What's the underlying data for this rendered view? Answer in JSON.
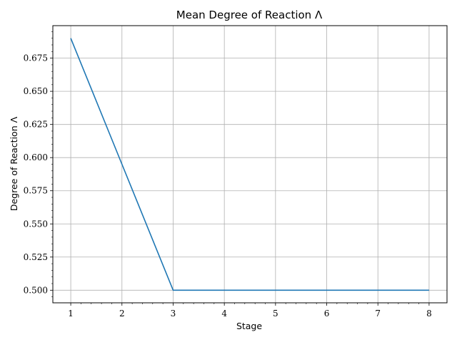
{
  "chart_data": {
    "type": "line",
    "title": "Mean Degree of Reaction Λ",
    "xlabel": "Stage",
    "ylabel": "Degree of Reaction Λ",
    "x": [
      1,
      2,
      3,
      4,
      5,
      6,
      7,
      8
    ],
    "series": [
      {
        "name": "Degree of Reaction",
        "values": [
          0.69,
          0.595,
          0.5,
          0.5,
          0.5,
          0.5,
          0.5,
          0.5
        ],
        "color": "#1f77b4"
      }
    ],
    "xlim": [
      0.65,
      8.35
    ],
    "ylim": [
      0.4905,
      0.6995
    ],
    "xticks": [
      1,
      2,
      3,
      4,
      5,
      6,
      7,
      8
    ],
    "xtick_labels": [
      "1",
      "2",
      "3",
      "4",
      "5",
      "6",
      "7",
      "8"
    ],
    "yticks": [
      0.5,
      0.525,
      0.55,
      0.575,
      0.6,
      0.625,
      0.65,
      0.675
    ],
    "ytick_labels": [
      "0.500",
      "0.525",
      "0.550",
      "0.575",
      "0.600",
      "0.625",
      "0.650",
      "0.675"
    ],
    "grid": true,
    "legend": "none"
  }
}
